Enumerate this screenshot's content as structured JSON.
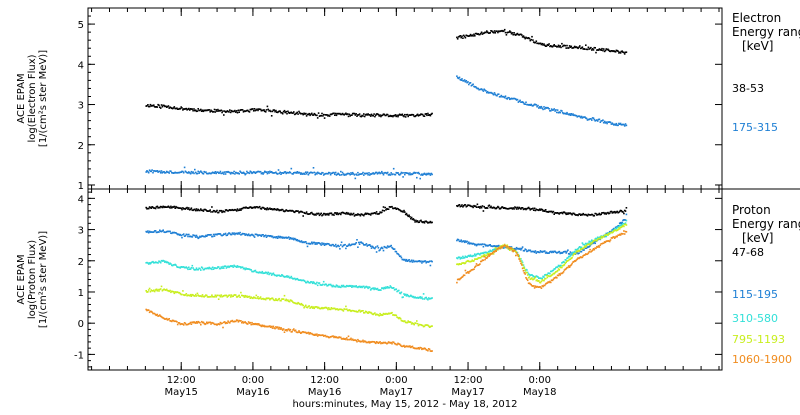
{
  "chart_data": [
    {
      "type": "scatter",
      "panel": "electron",
      "ylabel_lines": [
        "ACE EPAM",
        "log(Electron Flux)",
        "[1/(cm²s ster MeV)]"
      ],
      "legend_title_lines": [
        "Electron",
        "Energy ranges",
        "[keV]"
      ],
      "ylim": [
        0.9,
        5.4
      ],
      "yticks": [
        "1",
        "2",
        "3",
        "4",
        "5"
      ],
      "x_range_hours": [
        0,
        72
      ],
      "gap_hours": [
        49,
        52
      ],
      "series": [
        {
          "name": "38-53",
          "color": "#000000",
          "x": [
            0,
            3,
            6,
            9,
            12,
            15,
            18,
            21,
            24,
            27,
            30,
            33,
            36,
            39,
            42,
            45,
            48,
            52,
            55,
            57,
            60,
            63,
            66,
            69,
            72,
            75,
            78,
            80.5
          ],
          "y": [
            3.0,
            2.98,
            2.92,
            2.88,
            2.86,
            2.84,
            2.88,
            2.86,
            2.82,
            2.77,
            2.76,
            2.78,
            2.75,
            2.75,
            2.74,
            2.75,
            2.77,
            4.68,
            4.75,
            4.82,
            4.85,
            4.72,
            4.52,
            4.46,
            4.45,
            4.4,
            4.35,
            4.3
          ]
        },
        {
          "name": "175-315",
          "color": "#1e7fd4",
          "x": [
            0,
            6,
            12,
            18,
            24,
            30,
            36,
            42,
            48,
            52,
            54,
            56,
            58,
            60,
            63,
            66,
            69,
            72,
            75,
            78,
            80.5
          ],
          "y": [
            1.36,
            1.34,
            1.32,
            1.33,
            1.32,
            1.3,
            1.3,
            1.3,
            1.3,
            3.72,
            3.55,
            3.4,
            3.3,
            3.2,
            3.08,
            2.95,
            2.85,
            2.75,
            2.65,
            2.55,
            2.5
          ]
        }
      ]
    },
    {
      "type": "scatter",
      "panel": "proton",
      "ylabel_lines": [
        "ACE EPAM",
        "log(Proton Flux)",
        "[1/(cm²s ster MeV)]"
      ],
      "legend_title_lines": [
        "Proton",
        "Energy ranges",
        "[keV]"
      ],
      "ylim": [
        -1.5,
        4.3
      ],
      "yticks": [
        "-1",
        "0",
        "1",
        "2",
        "3",
        "4"
      ],
      "x_range_hours": [
        0,
        72
      ],
      "gap_hours": [
        49,
        52
      ],
      "series": [
        {
          "name": "47-68",
          "color": "#000000",
          "x": [
            0,
            3,
            6,
            9,
            12,
            15,
            18,
            21,
            24,
            27,
            30,
            33,
            36,
            39,
            41,
            43,
            45,
            48,
            52,
            56,
            60,
            64,
            68,
            72,
            75,
            78,
            80.5
          ],
          "y": [
            3.72,
            3.75,
            3.72,
            3.65,
            3.6,
            3.65,
            3.75,
            3.68,
            3.62,
            3.55,
            3.5,
            3.55,
            3.5,
            3.55,
            3.75,
            3.6,
            3.3,
            3.25,
            3.8,
            3.75,
            3.72,
            3.7,
            3.6,
            3.5,
            3.5,
            3.58,
            3.62
          ]
        },
        {
          "name": "115-195",
          "color": "#1e7fd4",
          "x": [
            0,
            3,
            6,
            9,
            12,
            15,
            18,
            21,
            24,
            27,
            30,
            33,
            36,
            39,
            41,
            43,
            45,
            48,
            52,
            55,
            58,
            61,
            64,
            67,
            70,
            72,
            75,
            78,
            80.5
          ],
          "y": [
            2.95,
            2.98,
            2.85,
            2.8,
            2.85,
            2.9,
            2.85,
            2.8,
            2.75,
            2.6,
            2.55,
            2.5,
            2.6,
            2.4,
            2.5,
            2.05,
            2.0,
            1.98,
            2.7,
            2.55,
            2.5,
            2.45,
            2.35,
            2.3,
            2.3,
            2.25,
            2.6,
            3.0,
            3.4
          ]
        },
        {
          "name": "310-580",
          "color": "#32e0d8",
          "x": [
            0,
            3,
            6,
            9,
            12,
            15,
            18,
            21,
            24,
            27,
            30,
            33,
            36,
            39,
            41,
            43,
            45,
            48,
            52,
            55,
            58,
            60,
            62,
            64,
            66,
            68,
            70,
            72,
            75,
            78,
            80.5
          ],
          "y": [
            1.95,
            2.0,
            1.8,
            1.75,
            1.8,
            1.85,
            1.7,
            1.6,
            1.5,
            1.35,
            1.25,
            1.2,
            1.2,
            1.1,
            1.2,
            0.95,
            0.85,
            0.8,
            2.1,
            2.2,
            2.35,
            2.5,
            2.3,
            1.6,
            1.45,
            1.7,
            2.0,
            2.4,
            2.7,
            2.95,
            3.3
          ]
        },
        {
          "name": "795-1193",
          "color": "#c8ee1e",
          "x": [
            0,
            3,
            6,
            9,
            12,
            15,
            18,
            21,
            24,
            27,
            30,
            33,
            36,
            39,
            41,
            43,
            45,
            48,
            52,
            55,
            58,
            60,
            62,
            64,
            66,
            68,
            70,
            72,
            75,
            78,
            80.5
          ],
          "y": [
            1.05,
            1.1,
            0.95,
            0.9,
            0.9,
            0.9,
            0.85,
            0.8,
            0.75,
            0.55,
            0.5,
            0.45,
            0.4,
            0.3,
            0.35,
            0.1,
            0.0,
            -0.1,
            1.9,
            2.05,
            2.3,
            2.55,
            2.3,
            1.5,
            1.35,
            1.6,
            1.9,
            2.3,
            2.65,
            2.95,
            3.2
          ]
        },
        {
          "name": "1060-1900",
          "color": "#f08c1e",
          "x": [
            0,
            3,
            6,
            9,
            12,
            15,
            18,
            21,
            24,
            27,
            30,
            33,
            36,
            39,
            41,
            43,
            45,
            48,
            52,
            55,
            58,
            60,
            62,
            64,
            66,
            68,
            70,
            72,
            75,
            78,
            80.5
          ],
          "y": [
            0.45,
            0.2,
            0.0,
            0.05,
            0.0,
            0.1,
            0.0,
            -0.1,
            -0.2,
            -0.3,
            -0.4,
            -0.45,
            -0.55,
            -0.6,
            -0.6,
            -0.7,
            -0.75,
            -0.85,
            1.4,
            1.8,
            2.3,
            2.5,
            2.3,
            1.3,
            1.15,
            1.4,
            1.7,
            2.05,
            2.4,
            2.75,
            2.95
          ]
        }
      ]
    }
  ],
  "x_axis": {
    "ticks": [
      {
        "hour": 6,
        "top": "12:00",
        "bottom": "May15"
      },
      {
        "hour": 18,
        "top": "0:00",
        "bottom": "May16"
      },
      {
        "hour": 30,
        "top": "12:00",
        "bottom": "May16"
      },
      {
        "hour": 42,
        "top": "0:00",
        "bottom": "May17"
      },
      {
        "hour": 54,
        "top": "12:00",
        "bottom": "May17"
      },
      {
        "hour": 66,
        "top": "0:00",
        "bottom": "May18"
      }
    ],
    "xlabel": "hours:minutes, May 15, 2012 - May 18, 2012"
  }
}
